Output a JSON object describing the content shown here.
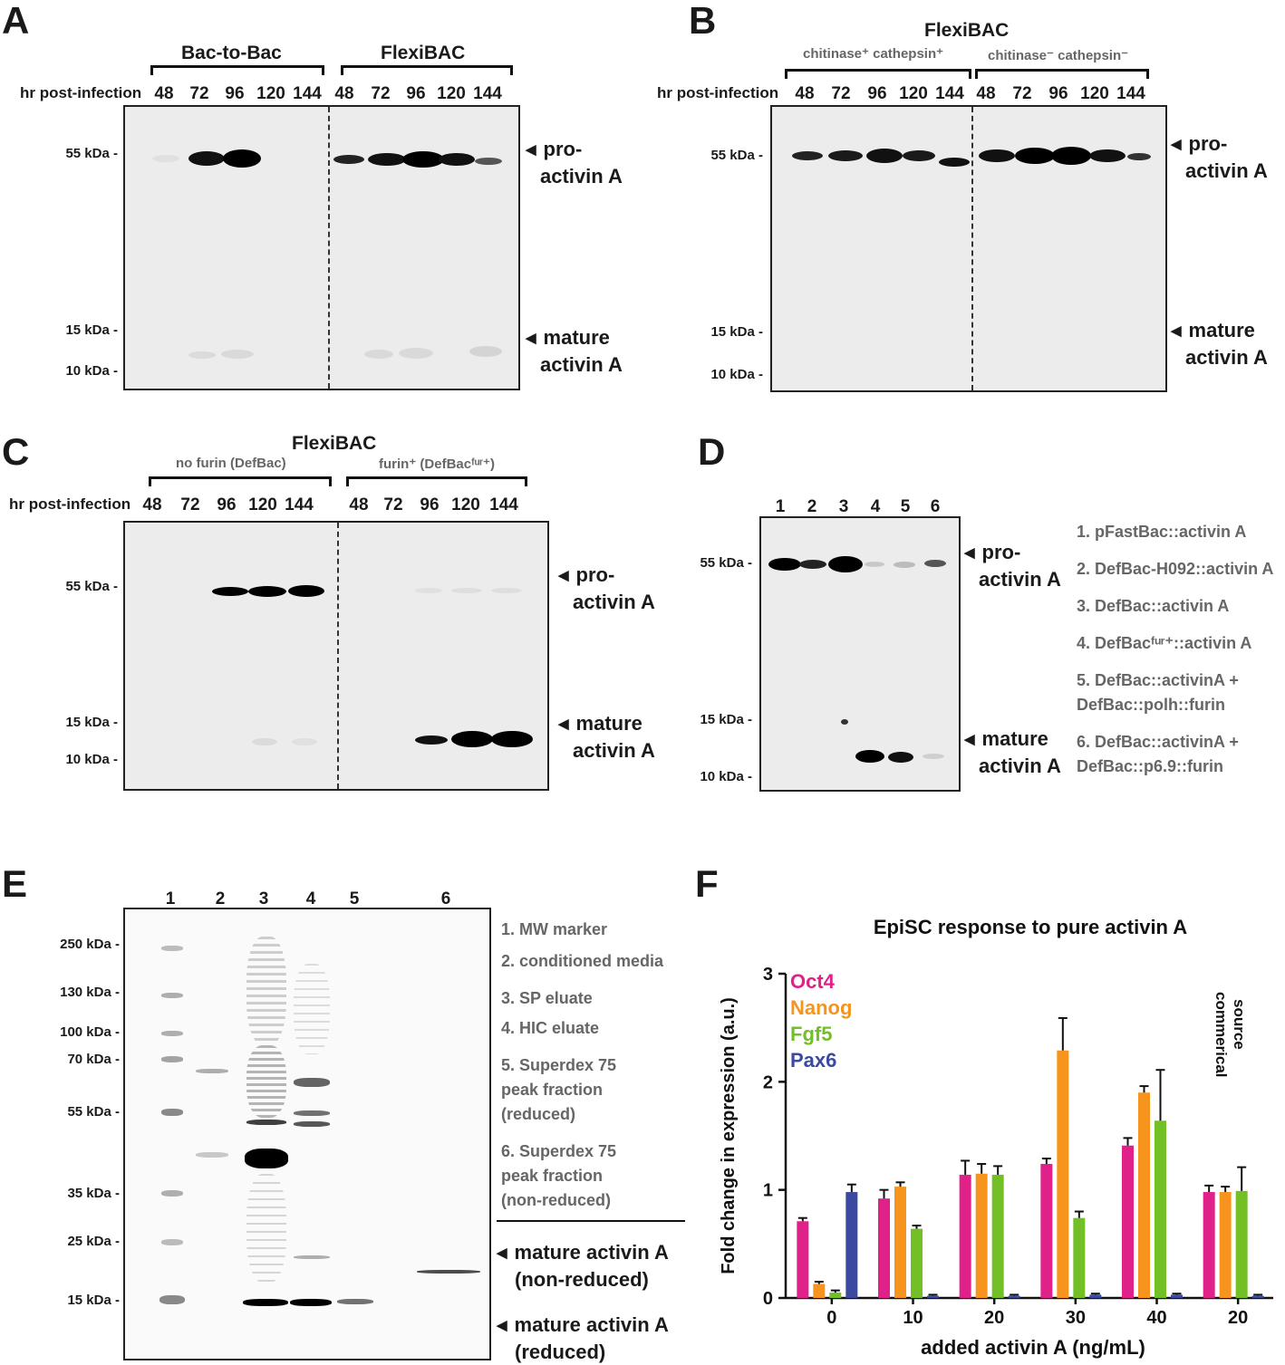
{
  "panels": {
    "A": {
      "label": "A",
      "groups": [
        "Bac-to-Bac",
        "FlexiBAC"
      ],
      "row_label": "hr post-infection",
      "lanes": [
        "48",
        "72",
        "96",
        "120",
        "144",
        "48",
        "72",
        "96",
        "120",
        "144"
      ],
      "markers": [
        "55 kDa",
        "15 kDa",
        "10 kDa"
      ],
      "annot_pro": [
        "pro-",
        "activin A"
      ],
      "annot_mature": [
        "mature",
        "activin A"
      ]
    },
    "B": {
      "label": "B",
      "title": "FlexiBAC",
      "groups": [
        "chitinase⁺ cathepsin⁺",
        "chitinase⁻ cathepsin⁻"
      ],
      "row_label": "hr post-infection",
      "lanes": [
        "48",
        "72",
        "96",
        "120",
        "144",
        "48",
        "72",
        "96",
        "120",
        "144"
      ],
      "markers": [
        "55 kDa",
        "15 kDa",
        "10 kDa"
      ],
      "annot_pro": [
        "pro-",
        "activin A"
      ],
      "annot_mature": [
        "mature",
        "activin A"
      ]
    },
    "C": {
      "label": "C",
      "title": "FlexiBAC",
      "groups": [
        "no furin (DefBac)",
        "furin⁺ (DefBacᶠᵘʳ⁺)"
      ],
      "row_label": "hr post-infection",
      "lanes": [
        "48",
        "72",
        "96",
        "120",
        "144",
        "48",
        "72",
        "96",
        "120",
        "144"
      ],
      "markers": [
        "55 kDa",
        "15 kDa",
        "10 kDa"
      ],
      "annot_pro": [
        "pro-",
        "activin A"
      ],
      "annot_mature": [
        "mature",
        "activin A"
      ]
    },
    "D": {
      "label": "D",
      "lanes": [
        "1",
        "2",
        "3",
        "4",
        "5",
        "6"
      ],
      "markers": [
        "55 kDa",
        "15 kDa",
        "10 kDa"
      ],
      "annot_pro": [
        "pro-",
        "activin A"
      ],
      "annot_mature": [
        "mature",
        "activin A"
      ],
      "legend": [
        "1. pFastBac::activin A",
        "2. DefBac-H092::activin A",
        "3. DefBac::activin A",
        "4. DefBacᶠᵘʳ⁺::activin A",
        "5. DefBac::activinA +",
        "DefBac::polh::furin",
        "6. DefBac::activinA +",
        "DefBac::p6.9::furin"
      ]
    },
    "E": {
      "label": "E",
      "lanes": [
        "1",
        "2",
        "3",
        "4",
        "5",
        "6"
      ],
      "markers": [
        "250 kDa",
        "130 kDa",
        "100 kDa",
        "70 kDa",
        "55 kDa",
        "35 kDa",
        "25 kDa",
        "15 kDa"
      ],
      "legend": [
        "1. MW marker",
        "2. conditioned media",
        "3. SP eluate",
        "4. HIC eluate",
        "5. Superdex 75",
        "peak fraction",
        "(reduced)",
        "6. Superdex 75",
        "peak fraction",
        "(non-reduced)"
      ],
      "annot_nonreduced": [
        "mature activin A",
        "(non-reduced)"
      ],
      "annot_reduced": [
        "mature activin A",
        "(reduced)"
      ]
    },
    "F": {
      "label": "F"
    }
  },
  "chart_data": {
    "type": "bar",
    "title": "EpiSC response to pure activin A",
    "xlabel": "added activin A (ng/mL)",
    "ylabel": "Fold change in expression (a.u.)",
    "categories": [
      "0",
      "10",
      "20",
      "30",
      "40",
      "20"
    ],
    "ylim": [
      0,
      3
    ],
    "yticks": [
      "0",
      "1",
      "2",
      "3"
    ],
    "annotation": [
      "commerical",
      "source"
    ],
    "series": [
      {
        "name": "Oct4",
        "color": "#e0218a",
        "values": [
          0.71,
          0.92,
          1.14,
          1.24,
          1.41,
          0.98
        ],
        "errors": [
          0.03,
          0.08,
          0.13,
          0.05,
          0.07,
          0.06
        ]
      },
      {
        "name": "Nanog",
        "color": "#f7941d",
        "values": [
          0.13,
          1.03,
          1.15,
          2.29,
          1.9,
          0.98
        ],
        "errors": [
          0.02,
          0.04,
          0.09,
          0.3,
          0.06,
          0.05
        ]
      },
      {
        "name": "Fgf5",
        "color": "#72bf26",
        "values": [
          0.05,
          0.64,
          1.14,
          0.74,
          1.64,
          0.99
        ],
        "errors": [
          0.02,
          0.03,
          0.08,
          0.06,
          0.47,
          0.22
        ]
      },
      {
        "name": "Pax6",
        "color": "#3b4aa0",
        "values": [
          0.98,
          0.02,
          0.02,
          0.03,
          0.03,
          0.02
        ],
        "errors": [
          0.07,
          0.01,
          0.01,
          0.01,
          0.01,
          0.01
        ]
      }
    ]
  }
}
